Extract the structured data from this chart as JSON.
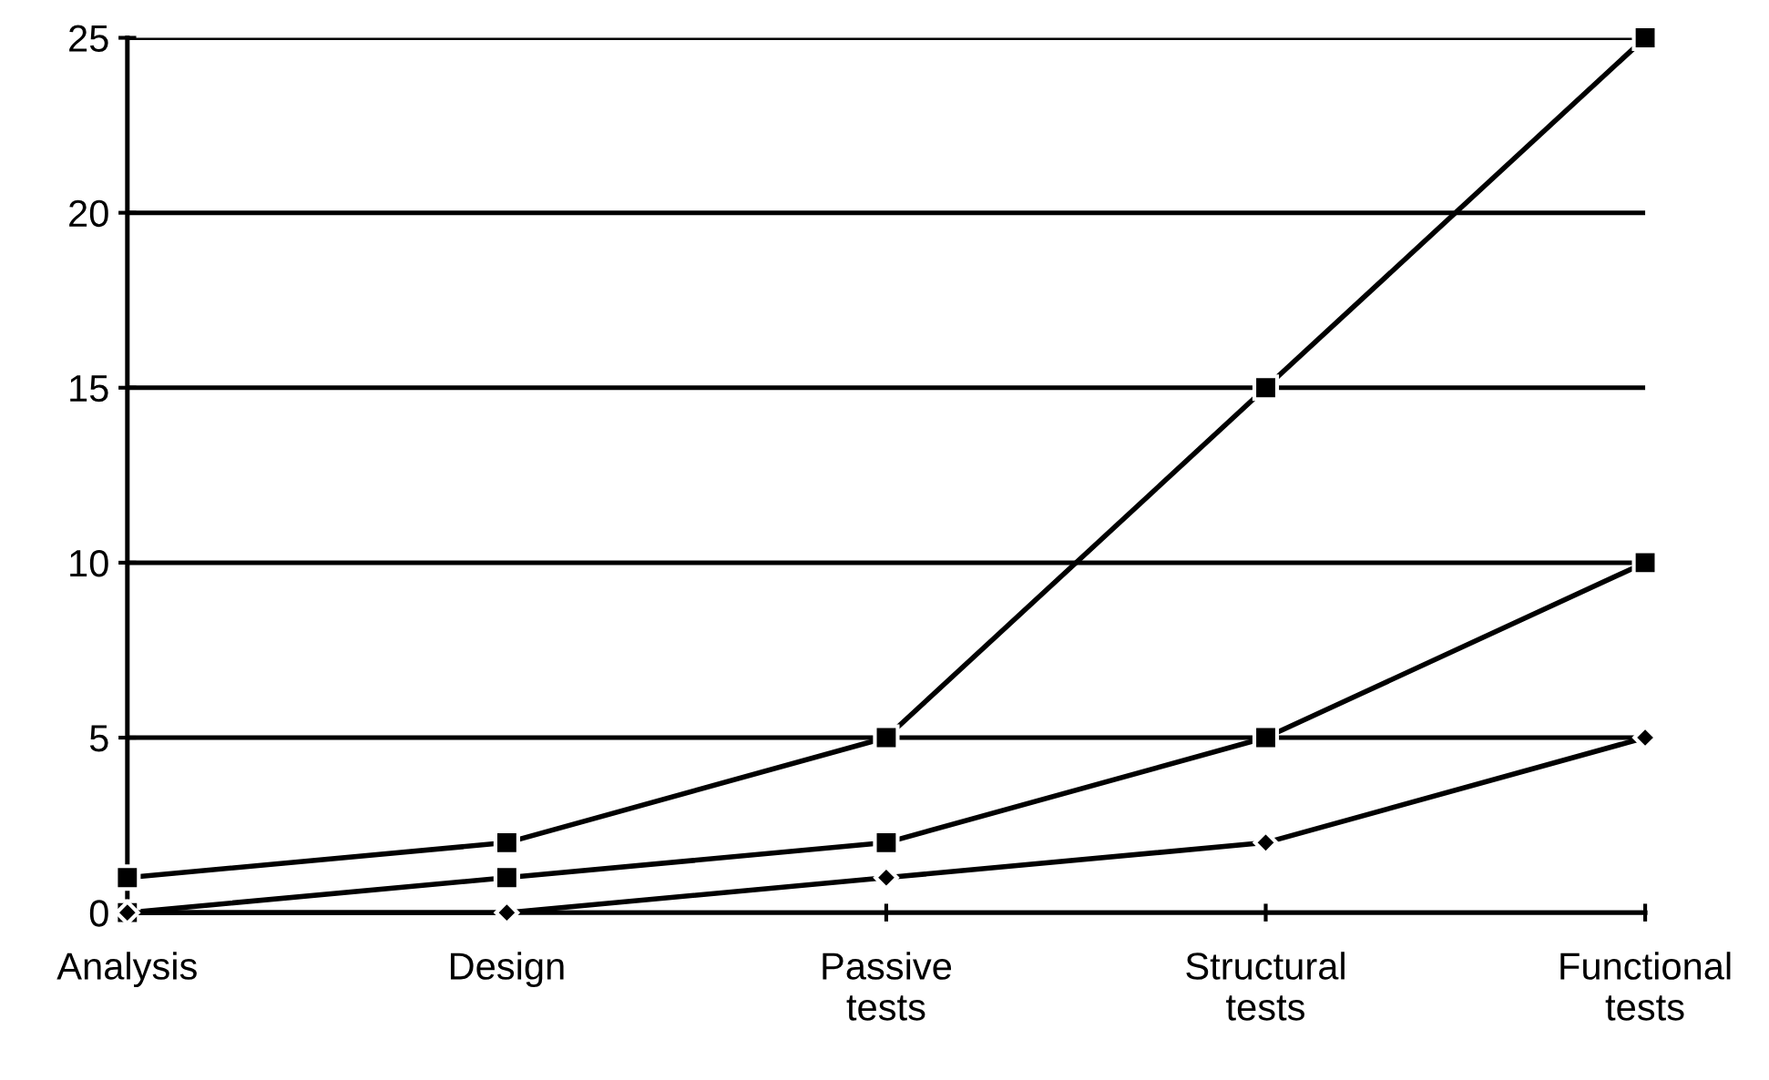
{
  "chart_data": {
    "type": "line",
    "categories": [
      "Analysis",
      "Design",
      "Passive\ntests",
      "Structural\ntests",
      "Functional\ntests"
    ],
    "series": [
      {
        "color": "#000000",
        "marker": "square",
        "values": [
          1,
          2,
          5,
          15,
          25
        ]
      },
      {
        "color": "#000000",
        "marker": "square",
        "values": [
          0,
          1,
          2,
          5,
          10
        ]
      },
      {
        "color": "#000000",
        "marker": "diamond",
        "values": [
          0,
          0,
          1,
          2,
          5
        ]
      }
    ],
    "ylim": [
      0,
      25
    ],
    "yticks": [
      0,
      5,
      10,
      15,
      20,
      25
    ],
    "grid": "y",
    "line_style": "solid"
  }
}
